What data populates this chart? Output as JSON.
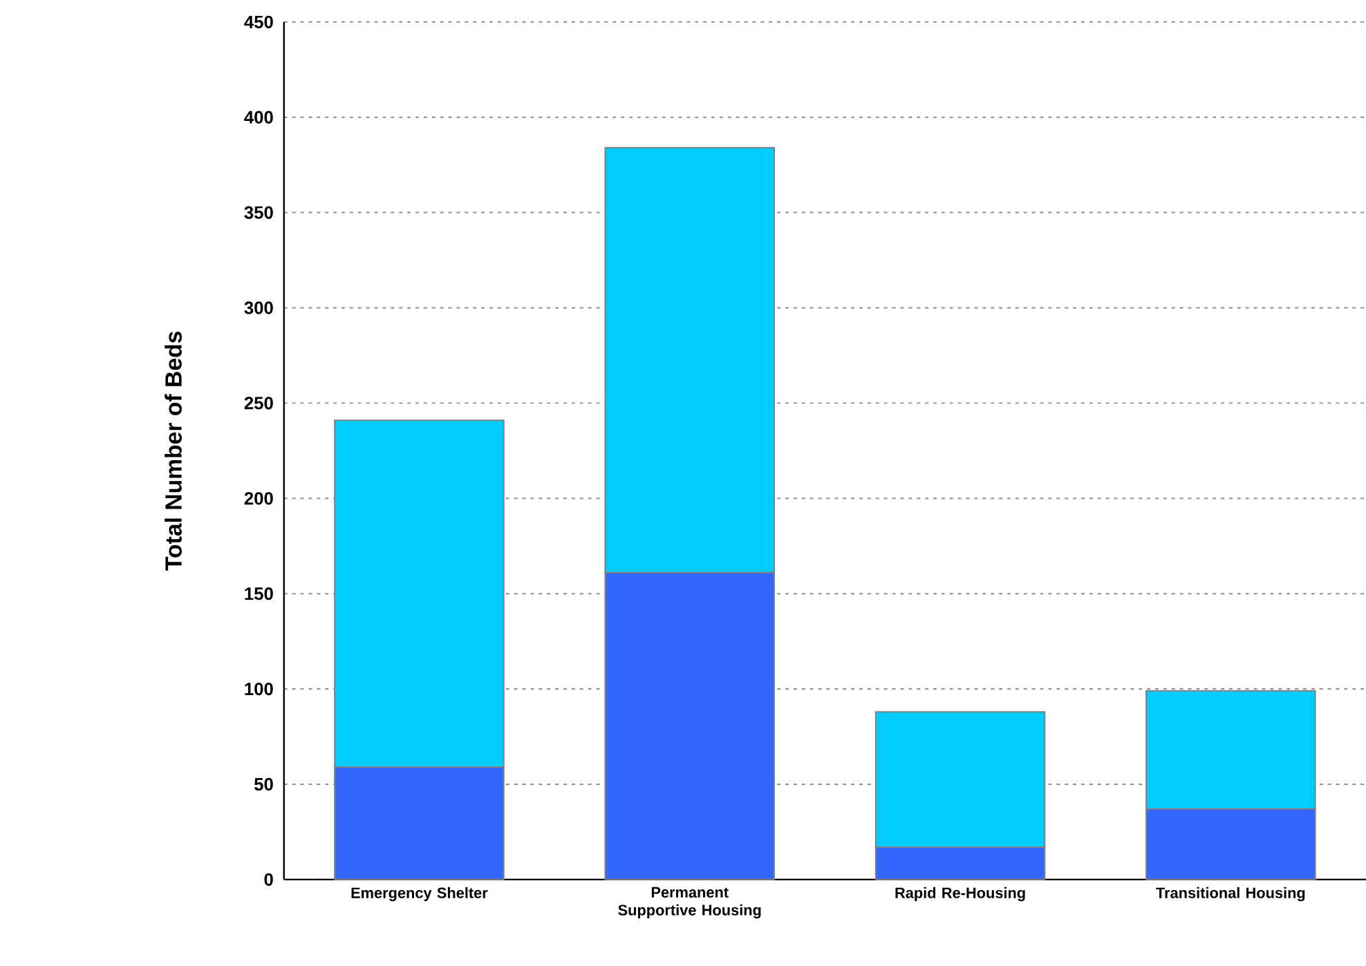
{
  "chart_data": {
    "type": "bar",
    "stacked": true,
    "ylabel": "Total Number of Beds",
    "categories": [
      "Emergency Shelter",
      "Permanent Supportive Housing",
      "Rapid Re-Housing",
      "Transitional Housing"
    ],
    "series": [
      {
        "color": "#3366ff",
        "values": [
          59,
          161,
          17,
          37
        ]
      },
      {
        "color": "#00ccff",
        "values": [
          182,
          223,
          71,
          62
        ]
      }
    ],
    "ylim": [
      0,
      450
    ],
    "yticks": [
      0,
      50,
      100,
      150,
      200,
      250,
      300,
      350,
      400,
      450
    ],
    "grid": "y"
  }
}
